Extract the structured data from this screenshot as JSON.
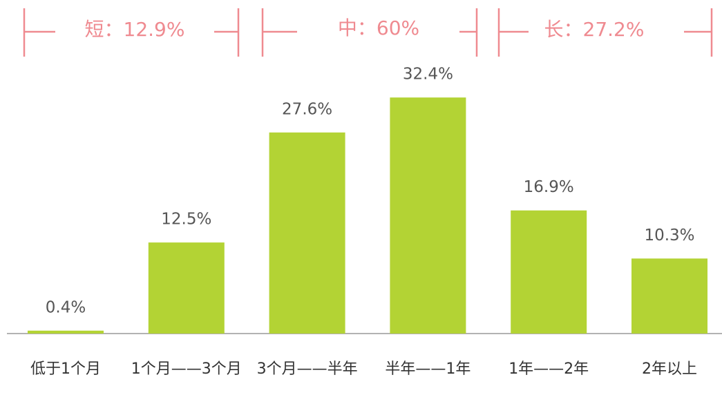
{
  "chart_data": {
    "type": "bar",
    "categories": [
      "低于1个月",
      "1个月——3个月",
      "3个月——半年",
      "半年——1年",
      "1年——2年",
      "2年以上"
    ],
    "values": [
      0.4,
      12.5,
      27.6,
      32.4,
      16.9,
      10.3
    ],
    "value_labels": [
      "0.4%",
      "12.5%",
      "27.6%",
      "32.4%",
      "16.9%",
      "10.3%"
    ],
    "color": "#b3d334",
    "annotations": [
      "短：12.9%",
      "中：60%",
      "长：27.2%"
    ]
  }
}
